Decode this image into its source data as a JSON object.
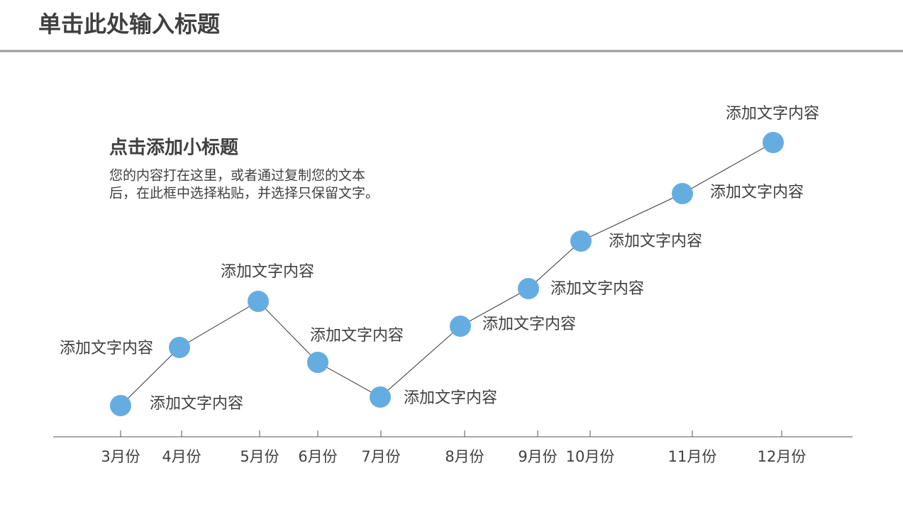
{
  "header": {
    "title": "单击此处输入标题"
  },
  "textbox": {
    "title": "点击添加小标题",
    "body_lines": [
      "您的内容打在这里，或者通过复制您的文本",
      "后，在此框中选择粘贴，并选择只保留文字。"
    ]
  },
  "chart_data": {
    "type": "line",
    "categories": [
      "3月份",
      "4月份",
      "5月份",
      "6月份",
      "7月份",
      "8月份",
      "9月份",
      "10月份",
      "11月份",
      "12月份"
    ],
    "values": [
      44,
      126,
      191,
      105,
      56,
      156,
      209,
      276,
      343,
      415
    ],
    "color": "#65ade1",
    "point_labels": [
      "添加文字内容",
      "添加文字内容",
      "添加文字内容",
      "添加文字内容",
      "添加文字内容",
      "添加文字内容",
      "添加文字内容",
      "添加文字内容",
      "添加文字内容",
      "添加文字内容"
    ]
  }
}
